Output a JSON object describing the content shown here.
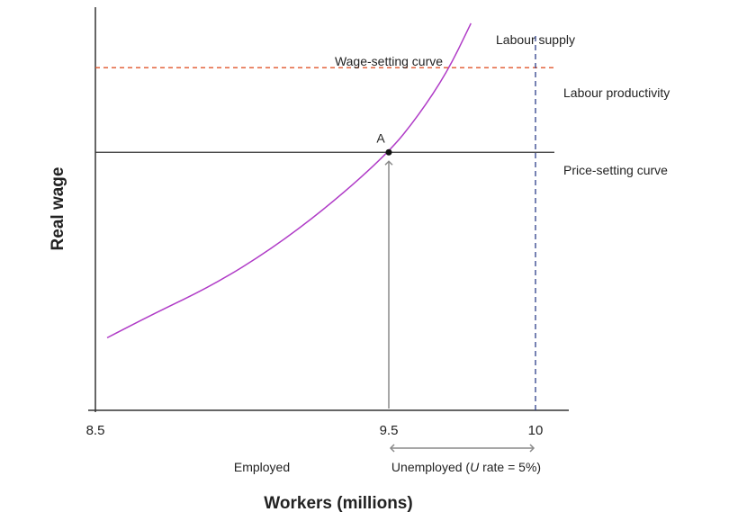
{
  "chart_data": {
    "type": "line",
    "xlabel": "Workers (millions)",
    "ylabel": "Real wage",
    "xticks": [
      8.5,
      9.5,
      10
    ],
    "xtick_labels": [
      "8.5",
      "9.5",
      "10"
    ],
    "xlim": [
      8.5,
      10.1
    ],
    "ylim": [
      0,
      1
    ],
    "grid": false,
    "series": [
      {
        "name": "Wage-setting curve",
        "color": "#b03cc7",
        "x": [
          8.54,
          8.7,
          8.9,
          9.1,
          9.3,
          9.5,
          9.6,
          9.7,
          9.78
        ],
        "y": [
          0.18,
          0.24,
          0.31,
          0.4,
          0.51,
          0.64,
          0.73,
          0.84,
          0.96
        ]
      },
      {
        "name": "Price-setting curve",
        "color": "#333333",
        "x": [
          8.5,
          10.1
        ],
        "y": [
          0.64,
          0.64
        ]
      },
      {
        "name": "Labour productivity",
        "color": "#e0552b",
        "style": "dashed",
        "x": [
          8.5,
          10.1
        ],
        "y": [
          0.85,
          0.85
        ]
      },
      {
        "name": "Labour supply",
        "color": "#2c3e8a",
        "style": "dashed",
        "x": [
          10,
          10
        ],
        "y": [
          0,
          0.93
        ]
      }
    ],
    "points": [
      {
        "label": "A",
        "x": 9.5,
        "y": 0.64
      }
    ],
    "annotations": {
      "employed": "Employed",
      "unemployed_prefix": "Unemployed (",
      "unemployed_italic": "U",
      "unemployed_suffix": " rate = 5%)"
    }
  }
}
